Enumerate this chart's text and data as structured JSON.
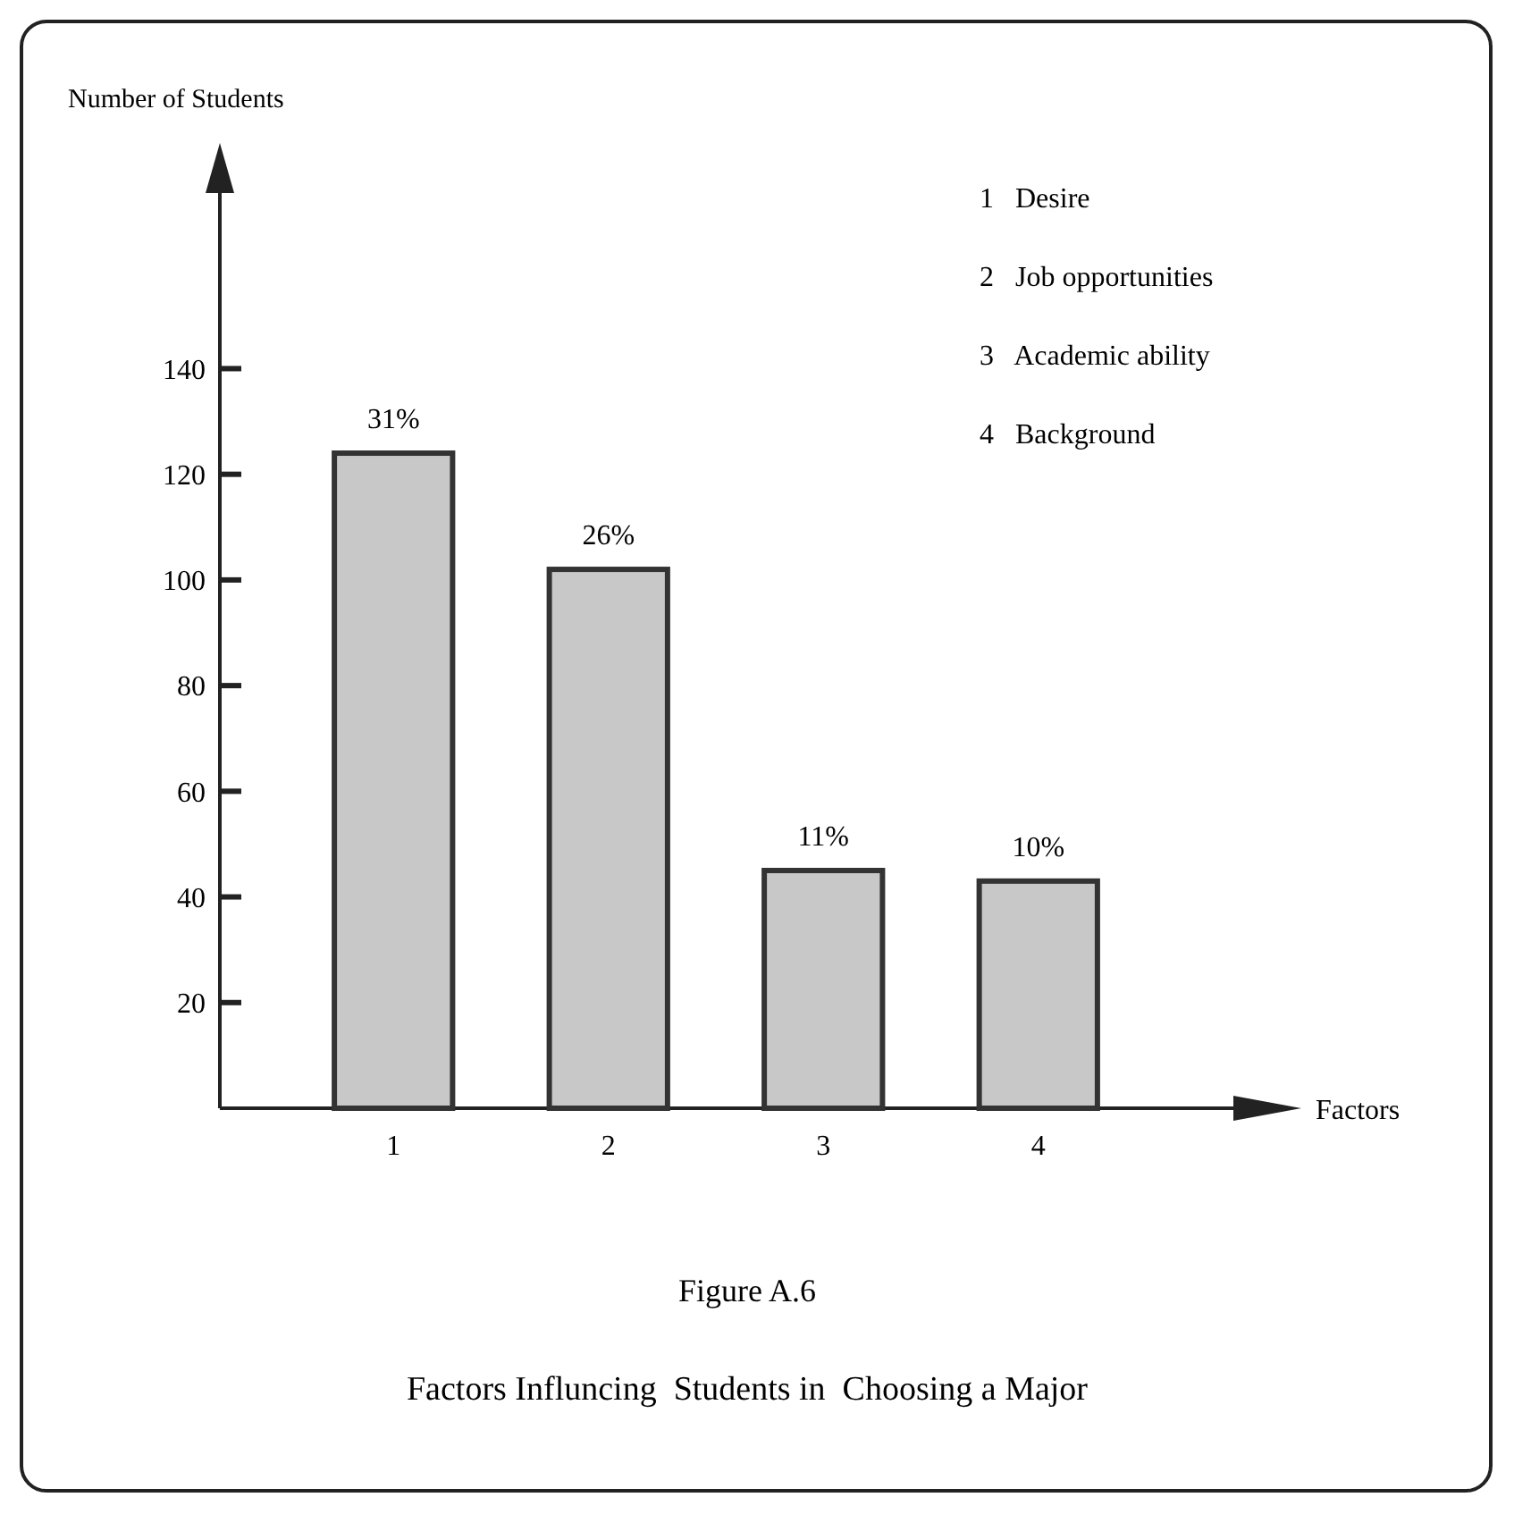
{
  "chart_data": {
    "type": "bar",
    "title": "Factors Influncing  Students in  Choosing a Major",
    "subtitle": "Figure A.6",
    "xlabel": "Factors",
    "ylabel": "Number of Students",
    "categories": [
      "1",
      "2",
      "3",
      "4"
    ],
    "values": [
      124,
      102,
      45,
      43
    ],
    "color": "#c8c8c8",
    "ylim": [
      0,
      180
    ],
    "yticks": [
      20,
      40,
      60,
      80,
      100,
      120,
      140
    ],
    "annotations": [
      "1   Desire",
      "2   Job opportunities",
      "3   Academic ability",
      "4   Background",
      {
        "text": "31%",
        "x": "1",
        "y": 124
      },
      {
        "text": "26%",
        "x": "2",
        "y": 102
      },
      {
        "text": "11%",
        "x": "3",
        "y": 45
      },
      {
        "text": "10%",
        "x": "4",
        "y": 43
      }
    ]
  }
}
